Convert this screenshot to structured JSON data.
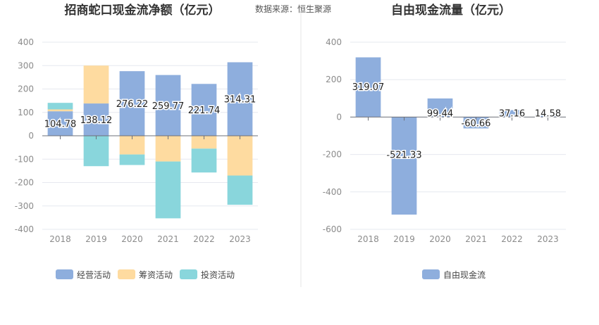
{
  "source_text": "数据来源：恒生聚源",
  "colors": {
    "operating": "#8eaedd",
    "financing": "#fedba0",
    "investing": "#89d6dc",
    "free_cash_flow": "#8eaedd",
    "grid": "#e6e8ef",
    "axis_text": "#8b8b8b",
    "title_text": "#333333",
    "divider": "#e4e4e4"
  },
  "chart_data": [
    {
      "type": "bar",
      "stacked": true,
      "title": "招商蛇口现金流净额（亿元）",
      "categories": [
        "2018",
        "2019",
        "2020",
        "2021",
        "2022",
        "2023"
      ],
      "ylim": [
        -400,
        400
      ],
      "yticks": [
        400,
        300,
        200,
        100,
        0,
        -100,
        -200,
        -300,
        -400
      ],
      "grid": true,
      "legend_position": "bottom",
      "series": [
        {
          "name": "经营活动",
          "color_key": "operating",
          "values": [
            104.78,
            138.12,
            276.22,
            259.77,
            221.74,
            314.31
          ],
          "labels": [
            "104.78",
            "138.12",
            "276.22",
            "259.77",
            "221.74",
            "314.31"
          ]
        },
        {
          "name": "筹资活动",
          "color_key": "financing",
          "values": [
            8,
            162,
            -80,
            -110,
            -55,
            -170
          ]
        },
        {
          "name": "投资活动",
          "color_key": "investing",
          "values": [
            28,
            -130,
            -45,
            -243,
            -102,
            -125
          ]
        }
      ]
    },
    {
      "type": "bar",
      "title": "自由现金流量（亿元）",
      "categories": [
        "2018",
        "2019",
        "2020",
        "2021",
        "2022",
        "2023"
      ],
      "ylim": [
        -600,
        400
      ],
      "yticks": [
        400,
        200,
        0,
        -200,
        -400,
        -600
      ],
      "grid": true,
      "legend_position": "bottom",
      "series": [
        {
          "name": "自由现金流",
          "color_key": "free_cash_flow",
          "values": [
            319.07,
            -521.33,
            99.44,
            -60.66,
            37.16,
            14.58
          ],
          "labels": [
            "319.07",
            "-521.33",
            "99.44",
            "-60.66",
            "37.16",
            "14.58"
          ]
        }
      ]
    }
  ]
}
